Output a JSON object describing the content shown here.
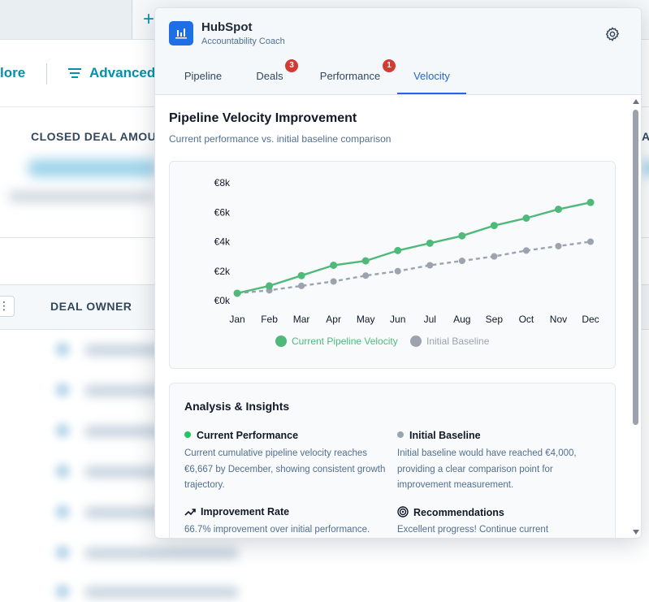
{
  "background": {
    "toolbar": {
      "more_label": "lore",
      "advanced_label": "Advanced"
    },
    "summary": {
      "closed_label": "CLOSED DEAL AMOU",
      "right_label": "A"
    },
    "table": {
      "owner_header": "DEAL OWNER",
      "kebab": "⋮"
    },
    "plus": "+"
  },
  "panel": {
    "brand": "HubSpot",
    "subtitle": "Accountability Coach",
    "tabs": [
      {
        "label": "Pipeline"
      },
      {
        "label": "Deals",
        "badge": "3"
      },
      {
        "label": "Performance",
        "badge": "1"
      },
      {
        "label": "Velocity",
        "active": true
      }
    ],
    "title": "Pipeline Velocity Improvement",
    "subheading": "Current performance vs. initial baseline comparison",
    "insights": {
      "title": "Analysis & Insights",
      "current": {
        "heading": "Current Performance",
        "text": "Current cumulative pipeline velocity reaches €6,667 by December, showing consistent growth trajectory."
      },
      "baseline": {
        "heading": "Initial Baseline",
        "text": "Initial baseline would have reached €4,000, providing a clear comparison point for improvement measurement."
      },
      "rate": {
        "heading": "Improvement Rate",
        "text": "66.7% improvement over initial performance."
      },
      "recommendations": {
        "heading": "Recommendations",
        "text": "Excellent progress! Continue current"
      }
    }
  },
  "colors": {
    "accent": "#2563eb",
    "current": "#4fb97a",
    "baseline": "#9ca3af",
    "badge": "#d33b32"
  },
  "chart_data": {
    "type": "line",
    "x": [
      "Jan",
      "Feb",
      "Mar",
      "Apr",
      "May",
      "Jun",
      "Jul",
      "Aug",
      "Sep",
      "Oct",
      "Nov",
      "Dec"
    ],
    "series": [
      {
        "name": "Current Pipeline Velocity",
        "values": [
          500,
          1000,
          1700,
          2400,
          2700,
          3400,
          3900,
          4400,
          5100,
          5600,
          6200,
          6667
        ]
      },
      {
        "name": "Initial Baseline",
        "values": [
          500,
          700,
          1000,
          1300,
          1700,
          2000,
          2400,
          2700,
          3000,
          3400,
          3700,
          4000
        ]
      }
    ],
    "yticks": [
      "€0k",
      "€2k",
      "€4k",
      "€6k",
      "€8k"
    ],
    "ylim": [
      0,
      8000
    ],
    "legend": "bottom",
    "grid": false
  }
}
